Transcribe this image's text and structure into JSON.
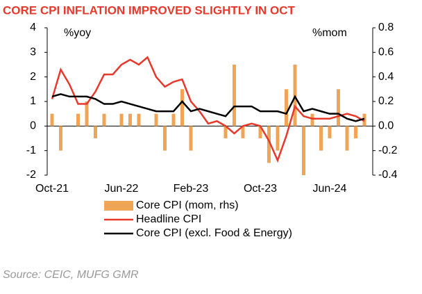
{
  "chart_data": {
    "type": "bar-line",
    "title": "CORE CPI INFLATION IMPROVED SLIGHTLY IN OCT",
    "y_label": "%yoy",
    "y2_label": "%mom",
    "source": "Source: CEIC, MUFG GMR",
    "categories": [
      "Oct-21",
      null,
      null,
      null,
      null,
      null,
      null,
      null,
      "Jun-22",
      null,
      null,
      null,
      null,
      null,
      null,
      null,
      "Feb-23",
      null,
      null,
      null,
      null,
      null,
      null,
      null,
      "Oct-23",
      null,
      null,
      null,
      null,
      null,
      null,
      null,
      "Jun-24",
      null,
      null,
      null,
      null
    ],
    "ylim": [
      -2,
      4
    ],
    "yticks": [
      -2,
      -1,
      0,
      1,
      2,
      3,
      4
    ],
    "y2lim": [
      -0.4,
      0.8
    ],
    "y2ticks": [
      -0.4,
      -0.2,
      {
        "value": 0,
        "label": "0.0"
      },
      0.2,
      0.4,
      0.6,
      0.8
    ],
    "series": [
      {
        "name": "Core CPI (mom, rhs)",
        "type": "bar",
        "axis": "y2",
        "color": "#f0a556",
        "values": [
          0.1,
          -0.2,
          0,
          0.1,
          0.2,
          -0.1,
          0.1,
          0,
          0.1,
          0.1,
          0.1,
          0,
          0.1,
          -0.2,
          0.1,
          0.3,
          -0.2,
          0,
          0,
          0,
          -0.1,
          0.5,
          -0.1,
          0,
          -0.1,
          -0.3,
          -0.2,
          0.3,
          0.5,
          -0.4,
          0.1,
          -0.2,
          -0.1,
          0.3,
          -0.2,
          -0.1,
          0.1
        ]
      },
      {
        "name": "Headline CPI",
        "type": "line",
        "color": "#e8382b",
        "values": [
          1.1,
          2.3,
          1.7,
          0.9,
          0.9,
          1.4,
          2.1,
          2.1,
          2.5,
          2.7,
          2.5,
          2.8,
          2.0,
          1.6,
          1.8,
          1.9,
          1.0,
          0.6,
          0.1,
          0.2,
          0.0,
          -0.3,
          0.0,
          0.1,
          0.0,
          -0.6,
          -1.4,
          -0.4,
          0.8,
          0.4,
          0.3,
          0.3,
          0.3,
          0.4,
          0.5,
          0.4,
          0.2
        ]
      },
      {
        "name": "Core CPI (excl. Food & Energy)",
        "type": "line",
        "color": "#000000",
        "values": [
          1.2,
          1.3,
          1.2,
          1.2,
          1.2,
          1.1,
          0.9,
          0.9,
          1.0,
          0.9,
          0.8,
          0.7,
          0.6,
          0.6,
          0.6,
          1.0,
          0.6,
          0.7,
          0.6,
          0.5,
          0.4,
          0.8,
          0.8,
          0.8,
          0.6,
          0.6,
          0.6,
          0.5,
          1.2,
          0.6,
          0.7,
          0.6,
          0.5,
          0.5,
          0.3,
          0.2,
          0.3
        ]
      }
    ]
  }
}
